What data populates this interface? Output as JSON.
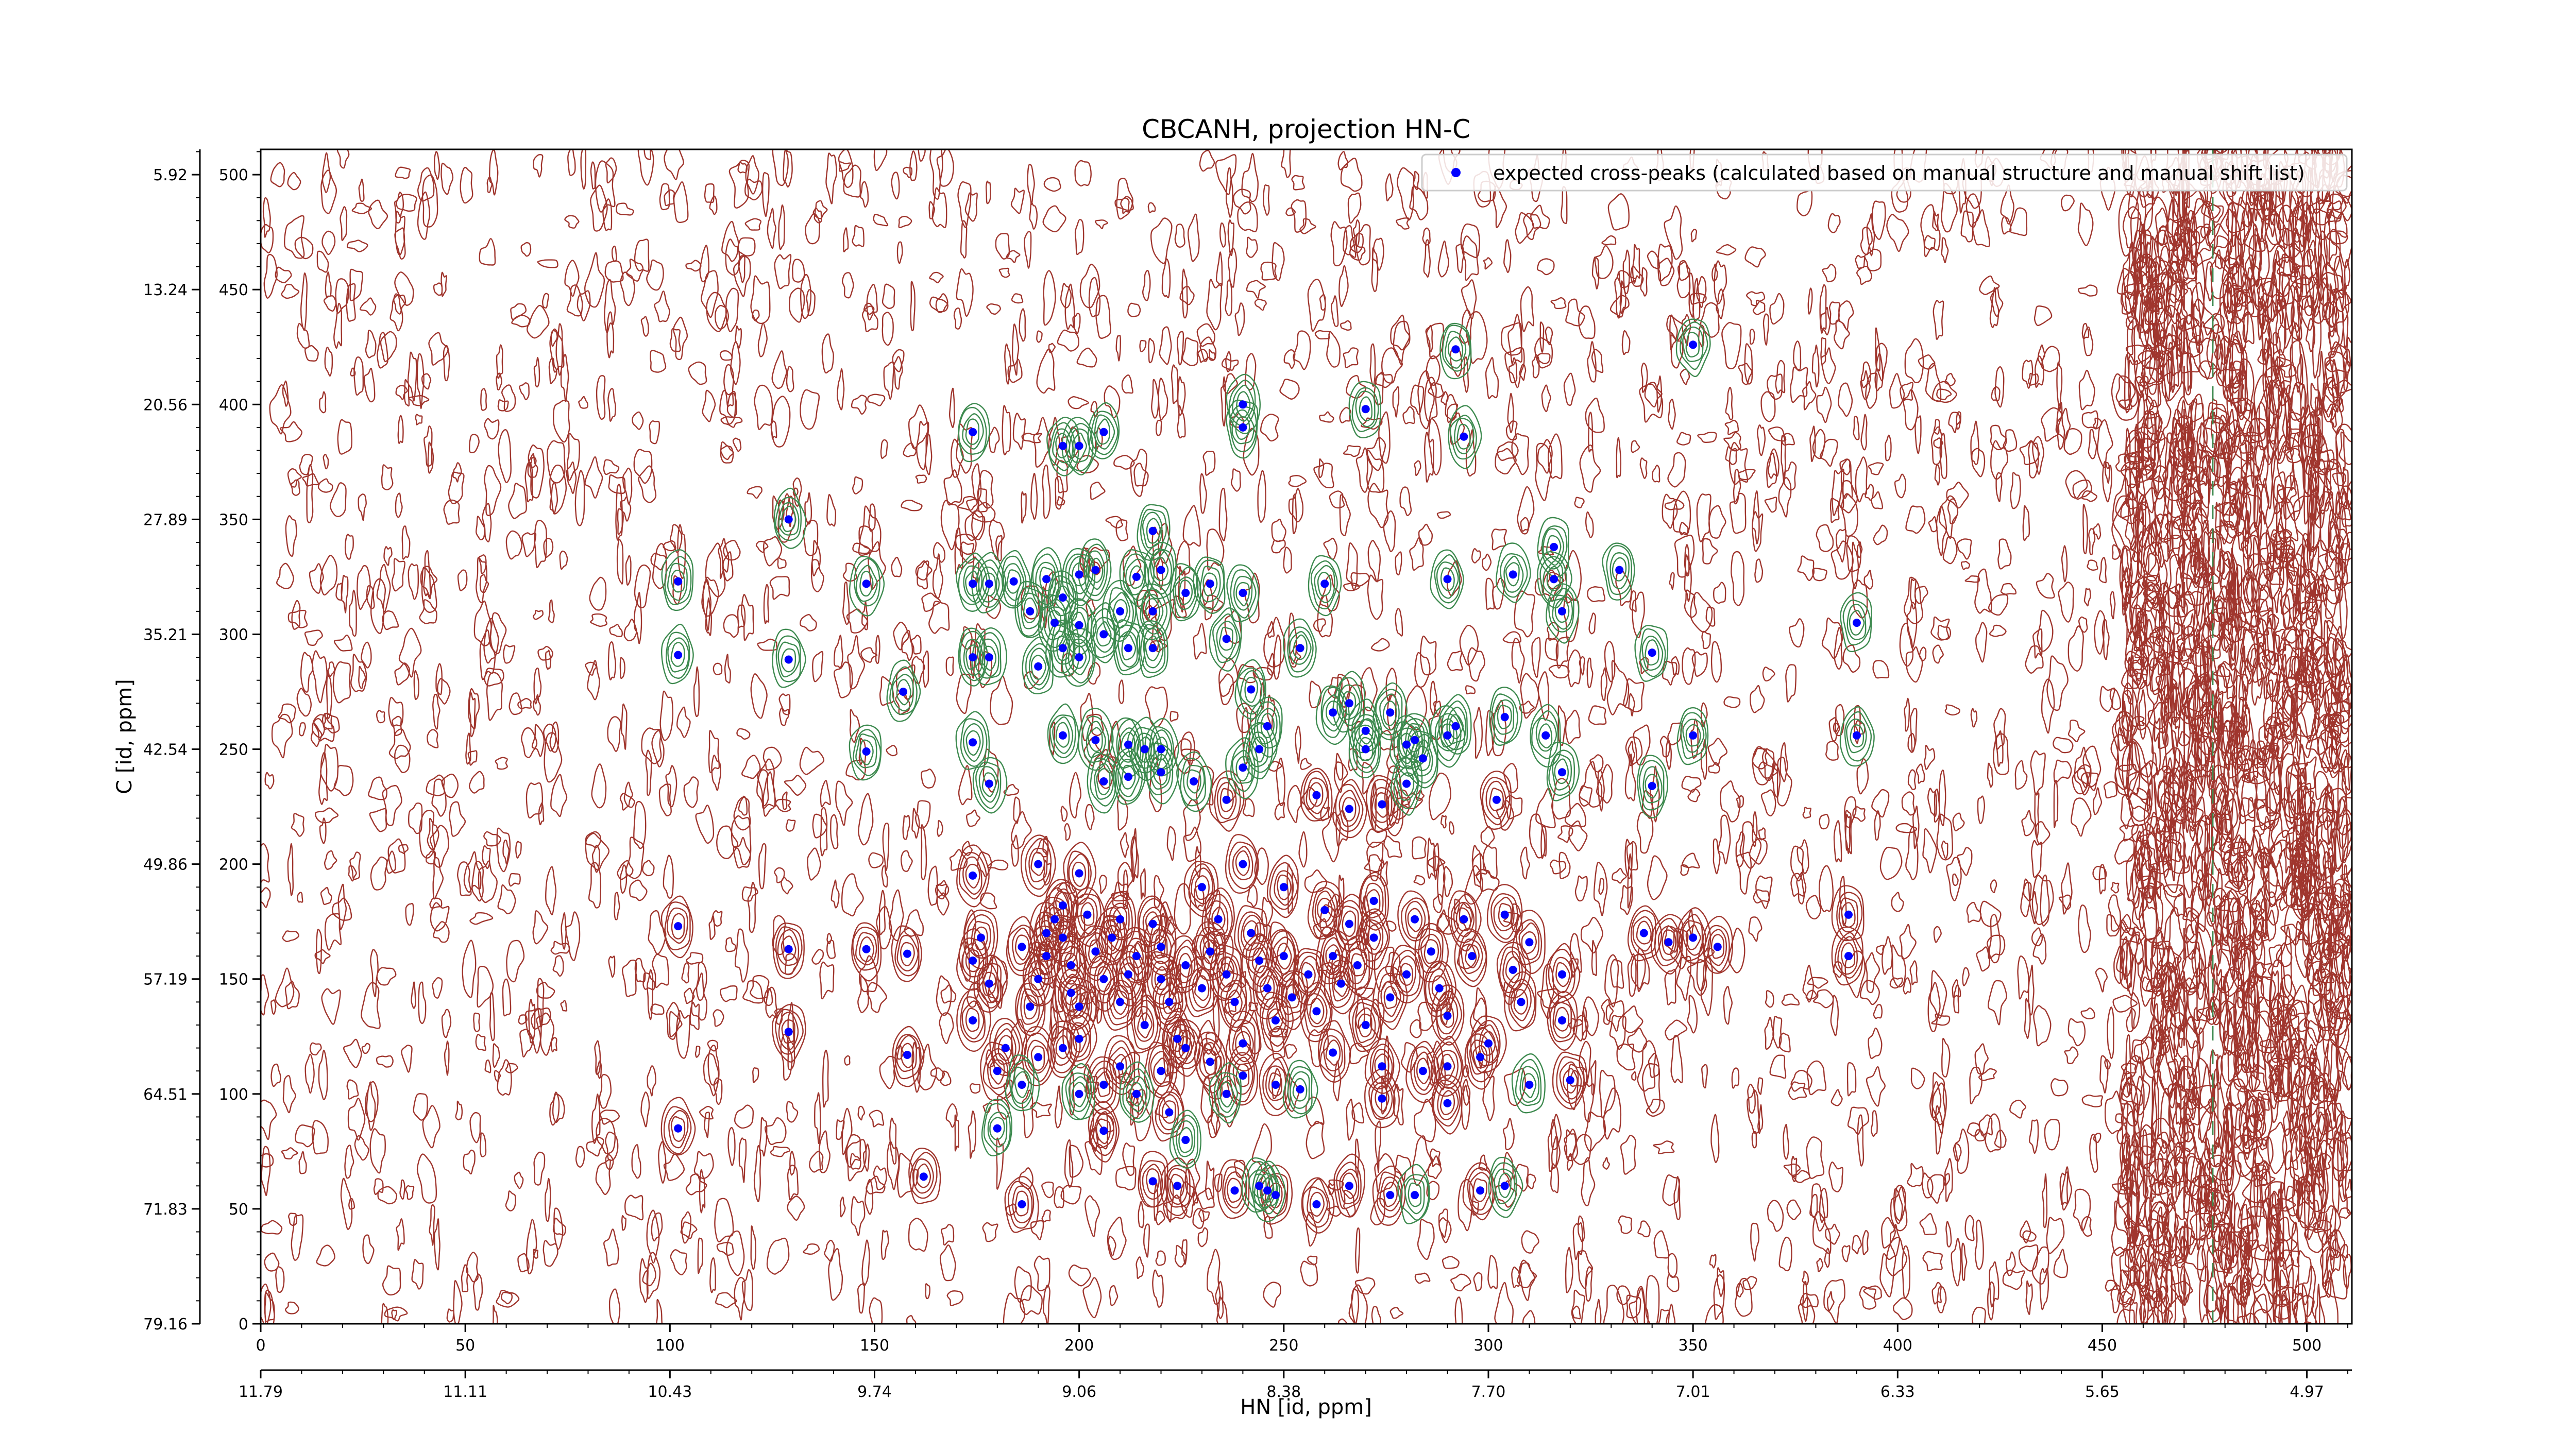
{
  "chart_data": {
    "type": "scatter",
    "title": "CBCANH, projection HN-C",
    "xlabel": "HN [id, ppm]",
    "ylabel": "C [id, ppm]",
    "xlim": [
      0,
      511
    ],
    "ylim": [
      0,
      511
    ],
    "bottom_ticks": [
      0,
      50,
      100,
      150,
      200,
      250,
      300,
      350,
      400,
      450,
      500
    ],
    "left_ticks": [
      0,
      50,
      100,
      150,
      200,
      250,
      300,
      350,
      400,
      450,
      500
    ],
    "ppm_x_ticks": [
      {
        "idx": 0,
        "label": "11.79"
      },
      {
        "idx": 50,
        "label": "11.11"
      },
      {
        "idx": 100,
        "label": "10.43"
      },
      {
        "idx": 150,
        "label": "9.74"
      },
      {
        "idx": 200,
        "label": "9.06"
      },
      {
        "idx": 250,
        "label": "8.38"
      },
      {
        "idx": 300,
        "label": "7.70"
      },
      {
        "idx": 350,
        "label": "7.01"
      },
      {
        "idx": 400,
        "label": "6.33"
      },
      {
        "idx": 450,
        "label": "5.65"
      },
      {
        "idx": 500,
        "label": "4.97"
      }
    ],
    "ppm_y_ticks": [
      {
        "idx": 0,
        "label": "79.16"
      },
      {
        "idx": 50,
        "label": "71.83"
      },
      {
        "idx": 100,
        "label": "64.51"
      },
      {
        "idx": 150,
        "label": "57.19"
      },
      {
        "idx": 200,
        "label": "49.86"
      },
      {
        "idx": 250,
        "label": "42.54"
      },
      {
        "idx": 300,
        "label": "35.21"
      },
      {
        "idx": 350,
        "label": "27.89"
      },
      {
        "idx": 400,
        "label": "20.56"
      },
      {
        "idx": 450,
        "label": "13.24"
      },
      {
        "idx": 500,
        "label": "5.92"
      }
    ],
    "legend": {
      "label": "expected cross-peaks (calculated based on manual structure and manual shift list)",
      "placement": "top-right",
      "marker_color": "#0000ff"
    },
    "colors": {
      "positive_contour": "#a0362e",
      "negative_contour": "#3d8a4f",
      "marker": "#0000ff"
    },
    "series": [
      {
        "name": "expected cross-peaks (calculated based on manual structure and manual shift list)",
        "points": [
          [
            102,
            323
          ],
          [
            102,
            291
          ],
          [
            129,
            350
          ],
          [
            129,
            289
          ],
          [
            148,
            322
          ],
          [
            157,
            275
          ],
          [
            148,
            249
          ],
          [
            174,
            388
          ],
          [
            174,
            322
          ],
          [
            178,
            322
          ],
          [
            174,
            290
          ],
          [
            178,
            290
          ],
          [
            174,
            253
          ],
          [
            196,
            382
          ],
          [
            200,
            382
          ],
          [
            206,
            388
          ],
          [
            184,
            323
          ],
          [
            192,
            324
          ],
          [
            196,
            316
          ],
          [
            200,
            326
          ],
          [
            204,
            328
          ],
          [
            188,
            310
          ],
          [
            194,
            305
          ],
          [
            200,
            304
          ],
          [
            206,
            300
          ],
          [
            210,
            310
          ],
          [
            196,
            294
          ],
          [
            200,
            290
          ],
          [
            190,
            286
          ],
          [
            212,
            294
          ],
          [
            218,
            294
          ],
          [
            218,
            310
          ],
          [
            214,
            325
          ],
          [
            220,
            328
          ],
          [
            218,
            345
          ],
          [
            226,
            318
          ],
          [
            232,
            322
          ],
          [
            240,
            318
          ],
          [
            240,
            390
          ],
          [
            240,
            400
          ],
          [
            236,
            298
          ],
          [
            242,
            276
          ],
          [
            246,
            260
          ],
          [
            244,
            250
          ],
          [
            260,
            322
          ],
          [
            254,
            294
          ],
          [
            262,
            266
          ],
          [
            266,
            270
          ],
          [
            270,
            258
          ],
          [
            270,
            250
          ],
          [
            270,
            398
          ],
          [
            276,
            266
          ],
          [
            280,
            252
          ],
          [
            282,
            254
          ],
          [
            290,
            256
          ],
          [
            292,
            260
          ],
          [
            290,
            324
          ],
          [
            294,
            386
          ],
          [
            292,
            424
          ],
          [
            304,
            264
          ],
          [
            306,
            326
          ],
          [
            316,
            338
          ],
          [
            318,
            310
          ],
          [
            316,
            324
          ],
          [
            314,
            256
          ],
          [
            332,
            328
          ],
          [
            340,
            292
          ],
          [
            340,
            234
          ],
          [
            350,
            426
          ],
          [
            350,
            256
          ],
          [
            390,
            256
          ],
          [
            390,
            305
          ],
          [
            196,
            256
          ],
          [
            204,
            254
          ],
          [
            212,
            252
          ],
          [
            216,
            250
          ],
          [
            220,
            250
          ],
          [
            206,
            236
          ],
          [
            212,
            238
          ],
          [
            220,
            240
          ],
          [
            228,
            236
          ],
          [
            236,
            228
          ],
          [
            240,
            242
          ],
          [
            258,
            230
          ],
          [
            266,
            224
          ],
          [
            274,
            226
          ],
          [
            280,
            235
          ],
          [
            284,
            246
          ],
          [
            302,
            228
          ],
          [
            318,
            240
          ],
          [
            178,
            235
          ],
          [
            102,
            173
          ],
          [
            102,
            85
          ],
          [
            129,
            163
          ],
          [
            129,
            127
          ],
          [
            148,
            163
          ],
          [
            158,
            161
          ],
          [
            158,
            117
          ],
          [
            174,
            158
          ],
          [
            176,
            168
          ],
          [
            178,
            148
          ],
          [
            174,
            132
          ],
          [
            174,
            195
          ],
          [
            182,
            120
          ],
          [
            186,
            164
          ],
          [
            188,
            138
          ],
          [
            190,
            150
          ],
          [
            192,
            160
          ],
          [
            192,
            170
          ],
          [
            194,
            176
          ],
          [
            196,
            182
          ],
          [
            196,
            168
          ],
          [
            198,
            156
          ],
          [
            198,
            144
          ],
          [
            200,
            138
          ],
          [
            200,
            124
          ],
          [
            202,
            178
          ],
          [
            204,
            162
          ],
          [
            206,
            150
          ],
          [
            208,
            168
          ],
          [
            210,
            140
          ],
          [
            210,
            176
          ],
          [
            212,
            152
          ],
          [
            214,
            160
          ],
          [
            216,
            130
          ],
          [
            218,
            174
          ],
          [
            220,
            164
          ],
          [
            220,
            150
          ],
          [
            222,
            140
          ],
          [
            224,
            124
          ],
          [
            226,
            156
          ],
          [
            230,
            146
          ],
          [
            232,
            162
          ],
          [
            234,
            176
          ],
          [
            236,
            152
          ],
          [
            238,
            140
          ],
          [
            240,
            122
          ],
          [
            242,
            170
          ],
          [
            244,
            158
          ],
          [
            246,
            146
          ],
          [
            248,
            132
          ],
          [
            250,
            160
          ],
          [
            252,
            142
          ],
          [
            256,
            152
          ],
          [
            258,
            136
          ],
          [
            262,
            160
          ],
          [
            264,
            148
          ],
          [
            266,
            174
          ],
          [
            268,
            156
          ],
          [
            270,
            130
          ],
          [
            272,
            168
          ],
          [
            276,
            142
          ],
          [
            280,
            152
          ],
          [
            282,
            176
          ],
          [
            286,
            162
          ],
          [
            288,
            146
          ],
          [
            290,
            134
          ],
          [
            294,
            176
          ],
          [
            296,
            160
          ],
          [
            300,
            122
          ],
          [
            304,
            178
          ],
          [
            306,
            154
          ],
          [
            308,
            140
          ],
          [
            318,
            152
          ],
          [
            318,
            132
          ],
          [
            320,
            106
          ],
          [
            310,
            166
          ],
          [
            338,
            170
          ],
          [
            344,
            166
          ],
          [
            350,
            168
          ],
          [
            356,
            164
          ],
          [
            388,
            178
          ],
          [
            388,
            160
          ],
          [
            180,
            110
          ],
          [
            186,
            104
          ],
          [
            190,
            116
          ],
          [
            196,
            120
          ],
          [
            200,
            100
          ],
          [
            206,
            104
          ],
          [
            210,
            112
          ],
          [
            214,
            100
          ],
          [
            220,
            110
          ],
          [
            226,
            120
          ],
          [
            232,
            114
          ],
          [
            240,
            108
          ],
          [
            248,
            104
          ],
          [
            254,
            102
          ],
          [
            262,
            118
          ],
          [
            274,
            112
          ],
          [
            284,
            110
          ],
          [
            290,
            112
          ],
          [
            298,
            116
          ],
          [
            180,
            85
          ],
          [
            206,
            84
          ],
          [
            222,
            92
          ],
          [
            236,
            100
          ],
          [
            274,
            98
          ],
          [
            290,
            96
          ],
          [
            310,
            104
          ],
          [
            224,
            60
          ],
          [
            238,
            58
          ],
          [
            244,
            60
          ],
          [
            248,
            56
          ],
          [
            266,
            60
          ],
          [
            282,
            56
          ],
          [
            298,
            58
          ],
          [
            186,
            52
          ],
          [
            226,
            80
          ],
          [
            162,
            64
          ],
          [
            218,
            62
          ],
          [
            246,
            58
          ],
          [
            258,
            52
          ],
          [
            276,
            56
          ],
          [
            304,
            60
          ],
          [
            240,
            200
          ],
          [
            250,
            190
          ],
          [
            260,
            180
          ],
          [
            190,
            200
          ],
          [
            200,
            196
          ],
          [
            230,
            190
          ],
          [
            272,
            184
          ]
        ]
      }
    ]
  }
}
